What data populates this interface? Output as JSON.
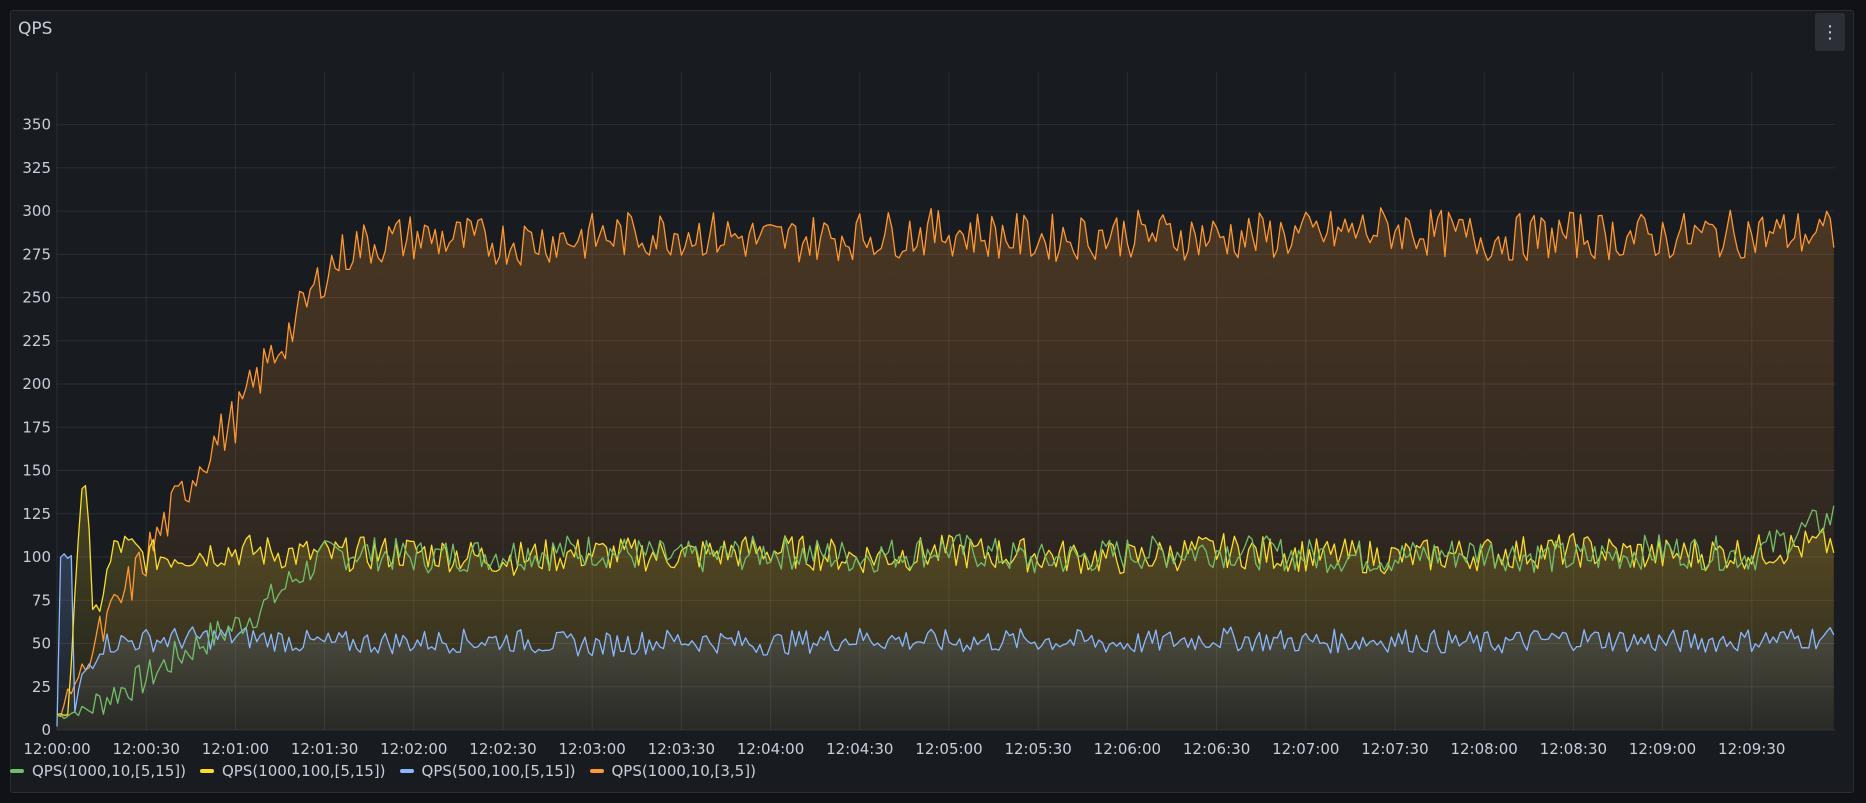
{
  "panel": {
    "title": "QPS",
    "menu_icon": "vertical-dots-icon"
  },
  "chart_data": {
    "type": "line",
    "title": "QPS",
    "xlabel": "",
    "ylabel": "",
    "ylim": [
      0,
      370
    ],
    "xlim_seconds": [
      0,
      598
    ],
    "y_ticks": [
      0,
      25,
      50,
      75,
      100,
      125,
      150,
      175,
      200,
      225,
      250,
      275,
      300,
      325,
      350
    ],
    "x_ticks": [
      "12:00:00",
      "12:00:30",
      "12:01:00",
      "12:01:30",
      "12:02:00",
      "12:02:30",
      "12:03:00",
      "12:03:30",
      "12:04:00",
      "12:04:30",
      "12:05:00",
      "12:05:30",
      "12:06:00",
      "12:06:30",
      "12:07:00",
      "12:07:30",
      "12:08:00",
      "12:08:30",
      "12:09:00",
      "12:09:30"
    ],
    "grid": true,
    "legend_position": "bottom-left",
    "series": [
      {
        "name": "QPS(1000,10,[5,15])",
        "color": "#73bf69",
        "fill": false,
        "x": [
          "12:00:00",
          "12:00:10",
          "12:00:20",
          "12:00:30",
          "12:00:40",
          "12:00:50",
          "12:01:00",
          "12:01:10",
          "12:01:20",
          "12:01:30",
          "12:01:40",
          "12:02:00",
          "12:02:30",
          "12:03:00",
          "12:03:30",
          "12:04:00",
          "12:04:30",
          "12:05:00",
          "12:05:30",
          "12:06:00",
          "12:06:30",
          "12:07:00",
          "12:07:30",
          "12:08:00",
          "12:08:30",
          "12:09:00",
          "12:09:30",
          "12:09:58"
        ],
        "y": [
          8,
          12,
          22,
          30,
          42,
          52,
          60,
          72,
          88,
          100,
          103,
          100,
          102,
          104,
          99,
          103,
          100,
          105,
          98,
          102,
          104,
          101,
          100,
          103,
          99,
          104,
          101,
          124
        ]
      },
      {
        "name": "QPS(1000,100,[5,15])",
        "color": "#fade2a",
        "fill": true,
        "x": [
          "12:00:00",
          "12:00:04",
          "12:00:08",
          "12:00:10",
          "12:00:12",
          "12:00:20",
          "12:00:30",
          "12:01:00",
          "12:01:30",
          "12:02:00",
          "12:02:30",
          "12:03:00",
          "12:03:30",
          "12:04:00",
          "12:04:30",
          "12:05:00",
          "12:05:30",
          "12:06:00",
          "12:06:30",
          "12:07:00",
          "12:07:30",
          "12:08:00",
          "12:08:30",
          "12:09:00",
          "12:09:30",
          "12:09:58"
        ],
        "y": [
          10,
          10,
          140,
          143,
          60,
          108,
          100,
          104,
          101,
          103,
          99,
          102,
          101,
          104,
          100,
          103,
          101,
          99,
          104,
          101,
          100,
          102,
          104,
          101,
          103,
          108
        ]
      },
      {
        "name": "QPS(500,100,[5,15])",
        "color": "#8ab8ff",
        "fill": true,
        "x": [
          "12:00:00",
          "12:00:01",
          "12:00:05",
          "12:00:06",
          "12:00:08",
          "12:00:15",
          "12:00:30",
          "12:01:00",
          "12:01:30",
          "12:02:00",
          "12:02:30",
          "12:03:00",
          "12:03:30",
          "12:04:00",
          "12:04:30",
          "12:05:00",
          "12:05:30",
          "12:06:00",
          "12:06:30",
          "12:07:00",
          "12:07:30",
          "12:08:00",
          "12:08:30",
          "12:09:00",
          "12:09:30",
          "12:09:58"
        ],
        "y": [
          0,
          100,
          100,
          10,
          30,
          50,
          52,
          54,
          50,
          51,
          52,
          49,
          52,
          50,
          53,
          51,
          52,
          50,
          53,
          51,
          52,
          50,
          53,
          51,
          52,
          54
        ]
      },
      {
        "name": "QPS(1000,10,[3,5])",
        "color": "#ff9830",
        "fill": true,
        "x": [
          "12:00:00",
          "12:00:10",
          "12:00:20",
          "12:00:30",
          "12:00:40",
          "12:00:50",
          "12:01:00",
          "12:01:10",
          "12:01:20",
          "12:01:30",
          "12:01:40",
          "12:02:00",
          "12:02:30",
          "12:03:00",
          "12:03:30",
          "12:04:00",
          "12:04:30",
          "12:05:00",
          "12:05:30",
          "12:06:00",
          "12:06:30",
          "12:07:00",
          "12:07:30",
          "12:08:00",
          "12:08:30",
          "12:09:00",
          "12:09:30",
          "12:09:58"
        ],
        "y": [
          8,
          40,
          70,
          100,
          130,
          160,
          180,
          210,
          235,
          265,
          280,
          285,
          282,
          285,
          288,
          283,
          286,
          288,
          284,
          287,
          285,
          286,
          290,
          284,
          286,
          285,
          287,
          287
        ]
      }
    ]
  }
}
